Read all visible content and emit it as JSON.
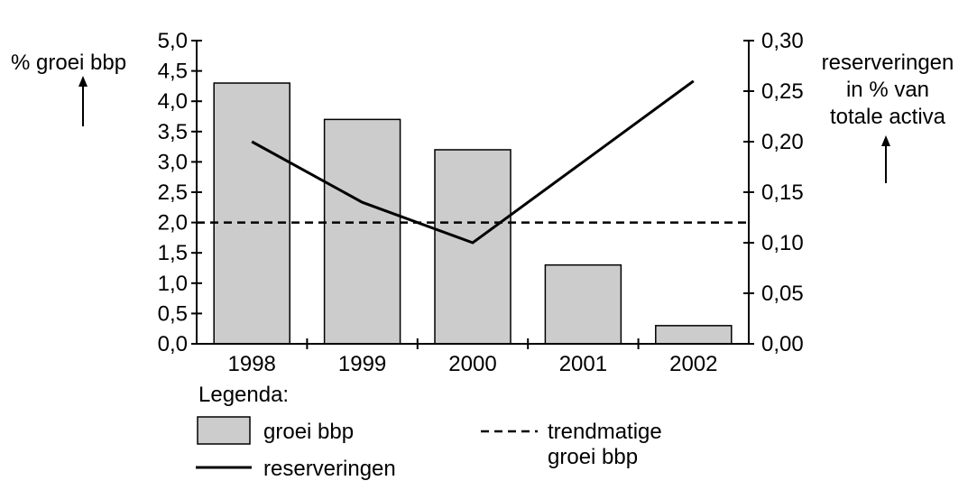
{
  "chart_data": {
    "type": "bar",
    "categories": [
      "1998",
      "1999",
      "2000",
      "2001",
      "2002"
    ],
    "bars": {
      "name": "groei bbp",
      "values": [
        4.3,
        3.7,
        3.2,
        1.3,
        0.3
      ],
      "color": "#cccccc"
    },
    "line": {
      "name": "reserveringen",
      "values": [
        0.2,
        0.14,
        0.1,
        0.18,
        0.26
      ],
      "axis": "right"
    },
    "trend": {
      "name_line1": "trendmatige",
      "name_line2": "groei bbp",
      "value": 2.0
    },
    "left_axis": {
      "label": "% groei bbp",
      "ylim": [
        0,
        5
      ],
      "ticks": [
        "0,0",
        "0,5",
        "1,0",
        "1,5",
        "2,0",
        "2,5",
        "3,0",
        "3,5",
        "4,0",
        "4,5",
        "5,0"
      ],
      "tick_values": [
        0,
        0.5,
        1,
        1.5,
        2,
        2.5,
        3,
        3.5,
        4,
        4.5,
        5
      ]
    },
    "right_axis": {
      "label_line1": "reserveringen",
      "label_line2": "in % van",
      "label_line3": "totale activa",
      "ylim": [
        0,
        0.3
      ],
      "ticks": [
        "0,00",
        "0,05",
        "0,10",
        "0,15",
        "0,20",
        "0,25",
        "0,30"
      ],
      "tick_values": [
        0,
        0.05,
        0.1,
        0.15,
        0.2,
        0.25,
        0.3
      ]
    },
    "legend": {
      "title": "Legenda:",
      "bar_label": "groei bbp",
      "line_label": "reserveringen",
      "trend_label_line1": "trendmatige",
      "trend_label_line2": "groei bbp"
    }
  }
}
